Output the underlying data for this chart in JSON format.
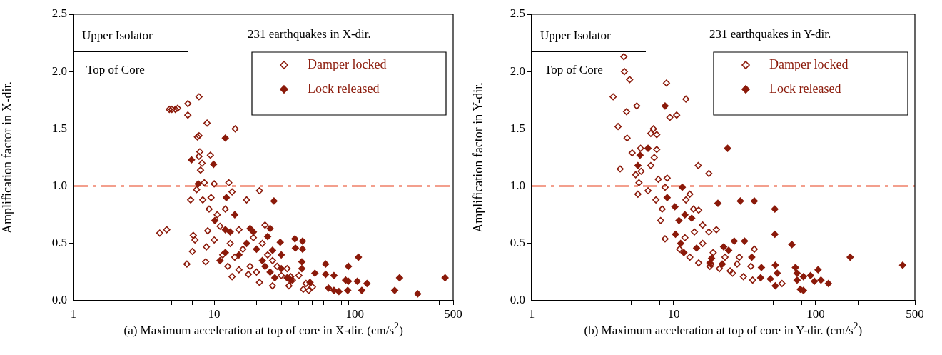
{
  "chart_data": [
    {
      "type": "scatter",
      "xlabel": "(a) Maximum acceleration at top of core in X-dir. (cm/s$^{2}$)",
      "ylabel": "Amplification factor in X-dir.",
      "annotations": [
        "Upper Isolator",
        "Top of Core",
        "231 earthquakes in X-dir."
      ],
      "log": "x",
      "xlim": [
        1,
        500
      ],
      "ylim": [
        0,
        2.5
      ],
      "xticks": [
        1,
        {
          "value": 2,
          "label": null
        },
        {
          "value": 3,
          "label": null
        },
        {
          "value": 4,
          "label": null
        },
        {
          "value": 5,
          "label": null
        },
        {
          "value": 6,
          "label": null
        },
        {
          "value": 7,
          "label": null
        },
        {
          "value": 8,
          "label": null
        },
        {
          "value": 9,
          "label": null
        },
        10,
        {
          "value": 20,
          "label": null
        },
        {
          "value": 30,
          "label": null
        },
        {
          "value": 40,
          "label": null
        },
        {
          "value": 50,
          "label": null
        },
        {
          "value": 60,
          "label": null
        },
        {
          "value": 70,
          "label": null
        },
        {
          "value": 80,
          "label": null
        },
        {
          "value": 90,
          "label": null
        },
        100,
        {
          "value": 200,
          "label": null
        },
        {
          "value": 300,
          "label": null
        },
        {
          "value": 400,
          "label": null
        },
        500
      ],
      "yticks": [
        {
          "value": 0,
          "label": "0.0"
        },
        {
          "value": 0.5,
          "label": "0.5"
        },
        {
          "value": 1,
          "label": "1.0"
        },
        {
          "value": 1.5,
          "label": "1.5"
        },
        {
          "value": 2,
          "label": "2.0"
        },
        {
          "value": 2.5,
          "label": "2.5"
        }
      ],
      "grid": false,
      "legend": "top right",
      "marker": "diamond",
      "ref_lines": [
        {
          "axis": "y",
          "value": 1,
          "color": "#e8401c",
          "line_style": "dashdot"
        }
      ],
      "series": [
        {
          "name": "Damper locked",
          "color": "#8b1a0a",
          "x": [
            4.1,
            4.6,
            4.8,
            5.0,
            5.3,
            5.5,
            6.5,
            6.5,
            6.4,
            6.8,
            7.0,
            7.1,
            7.3,
            7.5,
            7.6,
            7.8,
            7.8,
            7.9,
            7.8,
            8.2,
            8.0,
            8.5,
            8.9,
            9.4,
            14.1,
            10,
            12.7,
            21,
            17,
            13.4,
            8.7,
            8.8,
            9.0,
            10,
            13.4,
            15,
            17.5,
            21,
            23,
            26,
            34,
            43,
            47,
            35,
            11,
            12,
            13,
            14,
            16,
            18,
            20,
            22,
            24,
            26,
            28,
            30,
            33,
            36,
            40,
            45,
            50,
            9.5,
            10.5,
            11.5,
            12.5,
            19,
            15,
            8.3,
            9.2
          ],
          "values": [
            0.59,
            0.62,
            1.67,
            1.67,
            1.67,
            1.68,
            1.72,
            1.62,
            0.32,
            0.88,
            0.43,
            0.57,
            0.53,
            0.97,
            1.43,
            1.44,
            1.78,
            1.3,
            1.26,
            1.2,
            1.14,
            1.03,
            1.55,
            1.27,
            1.5,
            1.02,
            1.03,
            0.96,
            0.88,
            0.95,
            0.34,
            0.47,
            0.61,
            0.53,
            0.21,
            0.27,
            0.23,
            0.16,
            0.66,
            0.13,
            0.13,
            0.1,
            0.09,
            0.21,
            0.65,
            0.8,
            0.5,
            0.38,
            0.45,
            0.3,
            0.25,
            0.5,
            0.4,
            0.35,
            0.3,
            0.22,
            0.28,
            0.18,
            0.22,
            0.15,
            0.12,
            0.9,
            0.75,
            0.4,
            0.3,
            0.55,
            0.62,
            0.88,
            0.8
          ]
        },
        {
          "name": "Lock released",
          "color": "#8b1a0a",
          "x": [
            12,
            6.9,
            9.9,
            7.7,
            12.2,
            26.6,
            10.1,
            12,
            24,
            29.5,
            37.5,
            42.5,
            37.8,
            42.5,
            30,
            42,
            62,
            90,
            106,
            42,
            52,
            62,
            71,
            86,
            90,
            104,
            122,
            77,
            65,
            71,
            89,
            112,
            208,
            192,
            280,
            438,
            48,
            26,
            25,
            11,
            12,
            13,
            14,
            15,
            17,
            18,
            19,
            20,
            22,
            23,
            25,
            27,
            30,
            33,
            35
          ],
          "values": [
            1.42,
            1.23,
            1.19,
            1.02,
            0.9,
            0.87,
            0.7,
            0.62,
            0.56,
            0.51,
            0.54,
            0.52,
            0.46,
            0.45,
            0.4,
            0.34,
            0.32,
            0.3,
            0.38,
            0.28,
            0.24,
            0.23,
            0.22,
            0.18,
            0.17,
            0.17,
            0.15,
            0.08,
            0.11,
            0.09,
            0.09,
            0.09,
            0.2,
            0.09,
            0.06,
            0.2,
            0.16,
            0.44,
            0.63,
            0.35,
            0.42,
            0.6,
            0.75,
            0.4,
            0.5,
            0.63,
            0.6,
            0.45,
            0.35,
            0.3,
            0.25,
            0.2,
            0.28,
            0.2,
            0.18
          ]
        }
      ]
    },
    {
      "type": "scatter",
      "xlabel": "(b) Maximum acceleration at top of core in Y-dir. (cm/s$^{2}$)",
      "ylabel": "Amplification factor in Y-dir.",
      "annotations": [
        "Upper Isolator",
        "Top of Core",
        "231 earthquakes in Y-dir."
      ],
      "log": "x",
      "xlim": [
        1,
        500
      ],
      "ylim": [
        0,
        2.5
      ],
      "xticks": [
        1,
        {
          "value": 2,
          "label": null
        },
        {
          "value": 3,
          "label": null
        },
        {
          "value": 4,
          "label": null
        },
        {
          "value": 5,
          "label": null
        },
        {
          "value": 6,
          "label": null
        },
        {
          "value": 7,
          "label": null
        },
        {
          "value": 8,
          "label": null
        },
        {
          "value": 9,
          "label": null
        },
        10,
        {
          "value": 20,
          "label": null
        },
        {
          "value": 30,
          "label": null
        },
        {
          "value": 40,
          "label": null
        },
        {
          "value": 50,
          "label": null
        },
        {
          "value": 60,
          "label": null
        },
        {
          "value": 70,
          "label": null
        },
        {
          "value": 80,
          "label": null
        },
        {
          "value": 90,
          "label": null
        },
        100,
        {
          "value": 200,
          "label": null
        },
        {
          "value": 300,
          "label": null
        },
        {
          "value": 400,
          "label": null
        },
        500
      ],
      "yticks": [
        {
          "value": 0,
          "label": "0.0"
        },
        {
          "value": 0.5,
          "label": "0.5"
        },
        {
          "value": 1,
          "label": "1.0"
        },
        {
          "value": 1.5,
          "label": "1.5"
        },
        {
          "value": 2,
          "label": "2.0"
        },
        {
          "value": 2.5,
          "label": "2.5"
        }
      ],
      "grid": false,
      "legend": "top right",
      "marker": "diamond",
      "ref_lines": [
        {
          "axis": "y",
          "value": 1,
          "color": "#e8401c",
          "line_style": "dashdot"
        }
      ],
      "series": [
        {
          "name": "Damper locked",
          "color": "#8b1a0a",
          "x": [
            4.46,
            4.5,
            4.9,
            3.75,
            8.9,
            12.2,
            4.66,
            5.5,
            9.4,
            10.5,
            4.06,
            4.7,
            7.2,
            6.9,
            7.6,
            5.1,
            5.85,
            7.6,
            7.3,
            6.9,
            5.9,
            5.4,
            4.2,
            5.7,
            5.6,
            6.6,
            7.8,
            9.0,
            14.9,
            17.7,
            8.7,
            7.5,
            8.3,
            8.1,
            8.7,
            13,
            12.2,
            13.8,
            15,
            16,
            17.7,
            18.3,
            37,
            29,
            35,
            26,
            31,
            36,
            58,
            28,
            11,
            13,
            15,
            16,
            18,
            19,
            20,
            21,
            23,
            25,
            12,
            14
          ],
          "values": [
            2.13,
            2.0,
            1.93,
            1.78,
            1.9,
            1.76,
            1.65,
            1.7,
            1.6,
            1.62,
            1.52,
            1.42,
            1.5,
            1.46,
            1.45,
            1.29,
            1.33,
            1.32,
            1.25,
            1.18,
            1.13,
            1.1,
            1.15,
            1.03,
            0.93,
            0.96,
            1.06,
            1.07,
            1.18,
            1.11,
            0.99,
            0.88,
            0.8,
            0.7,
            0.54,
            0.93,
            0.88,
            0.8,
            0.79,
            0.66,
            0.6,
            0.32,
            0.45,
            0.38,
            0.3,
            0.24,
            0.21,
            0.18,
            0.15,
            0.32,
            0.45,
            0.38,
            0.33,
            0.5,
            0.3,
            0.42,
            0.62,
            0.28,
            0.38,
            0.26,
            0.55,
            0.6
          ]
        },
        {
          "name": "Lock released",
          "color": "#8b1a0a",
          "x": [
            8.7,
            6.6,
            5.8,
            5.6,
            11.5,
            24,
            20.5,
            9,
            10.2,
            12,
            13.4,
            10.9,
            10.3,
            11.2,
            11.8,
            14.5,
            18.5,
            29.5,
            37,
            51.6,
            51.6,
            68,
            175,
            410,
            26.7,
            31.6,
            22.5,
            24.4,
            35.5,
            41.5,
            41,
            48,
            52,
            53.7,
            52,
            72,
            74,
            74,
            82,
            78,
            82,
            92,
            104,
            98,
            109,
            123,
            18,
            22
          ],
          "values": [
            1.7,
            1.33,
            1.27,
            1.18,
            0.99,
            1.33,
            0.85,
            0.9,
            0.82,
            0.75,
            0.72,
            0.7,
            0.58,
            0.5,
            0.42,
            0.46,
            0.37,
            0.87,
            0.87,
            0.8,
            0.58,
            0.49,
            0.38,
            0.31,
            0.52,
            0.52,
            0.47,
            0.44,
            0.38,
            0.29,
            0.2,
            0.19,
            0.31,
            0.24,
            0.13,
            0.29,
            0.24,
            0.18,
            0.21,
            0.1,
            0.09,
            0.22,
            0.27,
            0.17,
            0.18,
            0.15,
            0.33,
            0.32
          ]
        }
      ]
    }
  ]
}
